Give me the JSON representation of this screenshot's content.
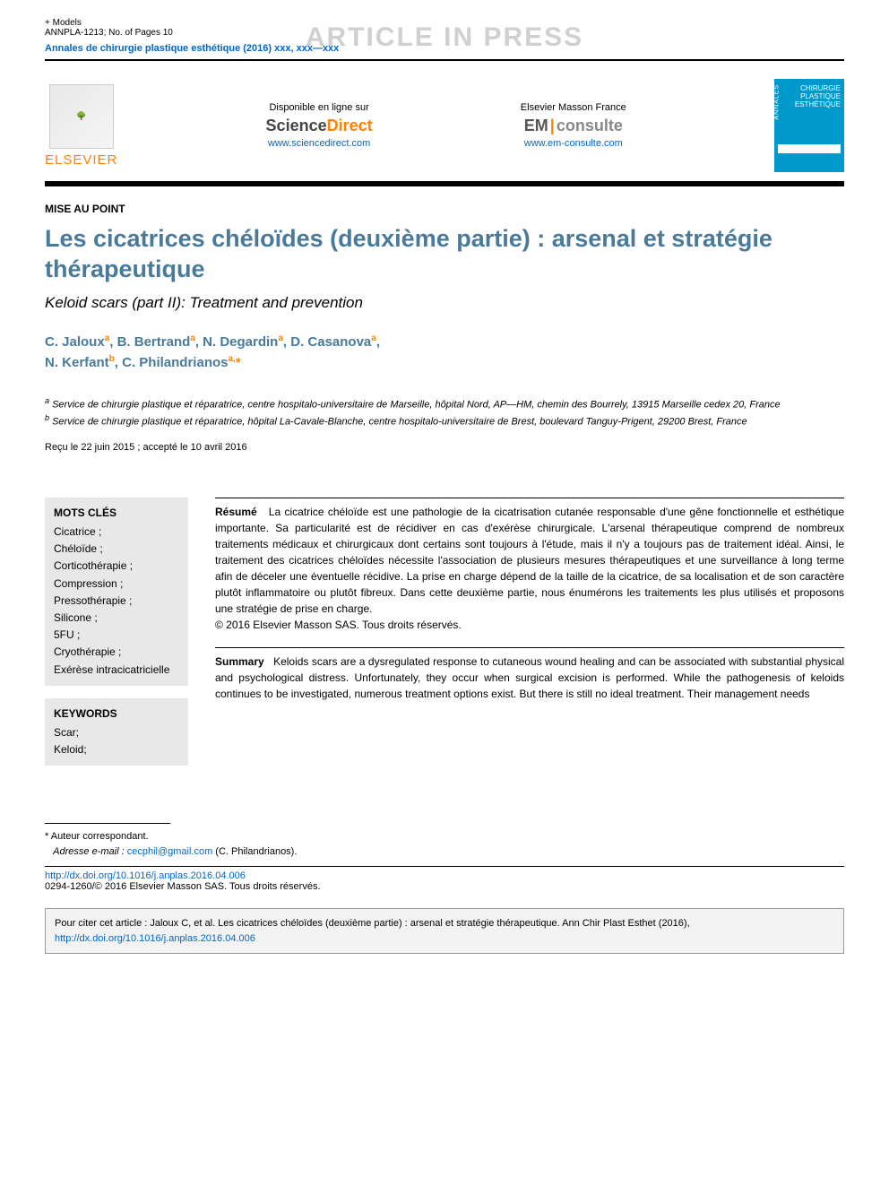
{
  "meta": {
    "models": "+ Models",
    "ref": "ANNPLA-1213; No. of Pages 10",
    "watermark": "ARTICLE IN PRESS",
    "journal_ref": "Annales de chirurgie plastique esthétique (2016) xxx, xxx—xxx"
  },
  "header": {
    "elsevier": "ELSEVIER",
    "col1": {
      "avail": "Disponible en ligne sur",
      "brand_a": "Science",
      "brand_b": "Direct",
      "url": "www.sciencedirect.com"
    },
    "col2": {
      "avail": "Elsevier Masson France",
      "brand_a": "EM",
      "brand_b": "consulte",
      "url": "www.em-consulte.com"
    },
    "cover": {
      "line1": "CHIRURGIE",
      "line2": "PLASTIQUE",
      "line3": "ESTHÉTIQUE",
      "vert": "ANNALES"
    }
  },
  "article": {
    "section": "MISE AU POINT",
    "title_fr": "Les cicatrices chéloïdes (deuxième partie) : arsenal et stratégie thérapeutique",
    "title_en": "Keloid scars (part II): Treatment and prevention",
    "authors_html": "C. Jaloux<sup>a</sup>, B. Bertrand<sup>a</sup>, N. Degardin<sup>a</sup>, D. Casanova<sup>a</sup>,<br>N. Kerfant<sup>b</sup>, C. Philandrianos<sup>a,</sup><span class='star'>*</span>",
    "affil_a": "Service de chirurgie plastique et réparatrice, centre hospitalo-universitaire de Marseille, hôpital Nord, AP—HM, chemin des Bourrely, 13915 Marseille cedex 20, France",
    "affil_b": "Service de chirurgie plastique et réparatrice, hôpital La-Cavale-Blanche, centre hospitalo-universitaire de Brest, boulevard Tanguy-Prigent, 29200 Brest, France",
    "dates": "Reçu le 22 juin 2015 ; accepté le 10 avril 2016"
  },
  "keywords": {
    "fr_head": "MOTS CLÉS",
    "fr_list": "Cicatrice ;\nChéloïde ;\nCorticothérapie ;\nCompression ;\nPressothérapie ;\nSilicone ;\n5FU ;\nCryothérapie ;\nExérèse intracicatricielle",
    "en_head": "KEYWORDS",
    "en_list": "Scar;\nKeloid;"
  },
  "abstracts": {
    "fr_head": "Résumé",
    "fr_body": "La cicatrice chéloïde est une pathologie de la cicatrisation cutanée responsable d'une gêne fonctionnelle et esthétique importante. Sa particularité est de récidiver en cas d'exérèse chirurgicale. L'arsenal thérapeutique comprend de nombreux traitements médicaux et chirurgicaux dont certains sont toujours à l'étude, mais il n'y a toujours pas de traitement idéal. Ainsi, le traitement des cicatrices chéloïdes nécessite l'association de plusieurs mesures thérapeutiques et une surveillance à long terme afin de déceler une éventuelle récidive. La prise en charge dépend de la taille de la cicatrice, de sa localisation et de son caractère plutôt inflammatoire ou plutôt fibreux. Dans cette deuxième partie, nous énumérons les traitements les plus utilisés et proposons une stratégie de prise en charge.",
    "fr_copy": "© 2016 Elsevier Masson SAS. Tous droits réservés.",
    "en_head": "Summary",
    "en_body": "Keloids scars are a dysregulated response to cutaneous wound healing and can be associated with substantial physical and psychological distress. Unfortunately, they occur when surgical excision is performed. While the pathogenesis of keloids continues to be investigated, numerous treatment options exist. But there is still no ideal treatment. Their management needs"
  },
  "footer": {
    "corr": "* Auteur correspondant.",
    "email_label": "Adresse e-mail :",
    "email": "cecphil@gmail.com",
    "email_who": " (C. Philandrianos).",
    "doi": "http://dx.doi.org/10.1016/j.anplas.2016.04.006",
    "issn": "0294-1260/© 2016 Elsevier Masson SAS. Tous droits réservés.",
    "cite_pre": "Pour citer cet article : Jaloux C, et al. Les cicatrices chéloïdes (deuxième partie) : arsenal et stratégie thérapeutique. Ann Chir Plast Esthet (2016), ",
    "cite_doi": "http://dx.doi.org/10.1016/j.anplas.2016.04.006"
  },
  "colors": {
    "accent": "#4a7a9a",
    "orange": "#ff8200",
    "link": "#0066cc",
    "grey_box": "#e8e8e8"
  }
}
